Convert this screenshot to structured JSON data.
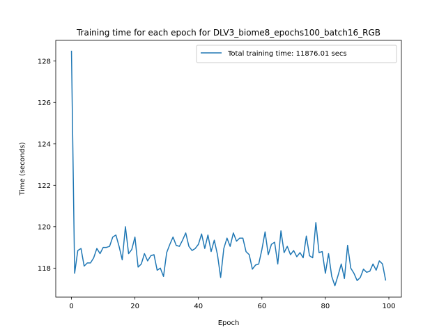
{
  "chart_data": {
    "type": "line",
    "title": "Training time for each epoch for DLV3_biome8_epochs100_batch16_RGB",
    "xlabel": "Epoch",
    "ylabel": "Time (seconds)",
    "xlim": [
      -4.95,
      103.95
    ],
    "ylim": [
      116.6,
      129.0
    ],
    "xticks": [
      0,
      20,
      40,
      60,
      80,
      100
    ],
    "yticks": [
      118,
      120,
      122,
      124,
      126,
      128
    ],
    "grid": false,
    "legend_position": "top-right",
    "series": [
      {
        "name": "Total training time: 11876.01 secs",
        "color": "#1f77b4",
        "x": [
          0,
          1,
          2,
          3,
          4,
          5,
          6,
          7,
          8,
          9,
          10,
          11,
          12,
          13,
          14,
          15,
          16,
          17,
          18,
          19,
          20,
          21,
          22,
          23,
          24,
          25,
          26,
          27,
          28,
          29,
          30,
          31,
          32,
          33,
          34,
          35,
          36,
          37,
          38,
          39,
          40,
          41,
          42,
          43,
          44,
          45,
          46,
          47,
          48,
          49,
          50,
          51,
          52,
          53,
          54,
          55,
          56,
          57,
          58,
          59,
          60,
          61,
          62,
          63,
          64,
          65,
          66,
          67,
          68,
          69,
          70,
          71,
          72,
          73,
          74,
          75,
          76,
          77,
          78,
          79,
          80,
          81,
          82,
          83,
          84,
          85,
          86,
          87,
          88,
          89,
          90,
          91,
          92,
          93,
          94,
          95,
          96,
          97,
          98,
          99
        ],
        "values": [
          128.5,
          117.75,
          118.85,
          118.95,
          118.1,
          118.25,
          118.25,
          118.5,
          118.95,
          118.7,
          119.0,
          119.0,
          119.05,
          119.5,
          119.6,
          119.05,
          118.4,
          120.0,
          118.7,
          118.9,
          119.5,
          118.05,
          118.2,
          118.7,
          118.35,
          118.6,
          118.65,
          117.9,
          118.0,
          117.6,
          118.75,
          119.15,
          119.5,
          119.1,
          119.05,
          119.35,
          119.7,
          119.05,
          118.85,
          118.95,
          119.15,
          119.65,
          118.95,
          119.6,
          118.8,
          119.35,
          118.65,
          117.55,
          118.95,
          119.45,
          119.05,
          119.7,
          119.3,
          119.45,
          119.45,
          118.8,
          118.65,
          117.95,
          118.15,
          118.2,
          118.9,
          119.75,
          118.65,
          119.15,
          119.25,
          118.2,
          119.8,
          118.75,
          119.05,
          118.65,
          118.85,
          118.55,
          118.75,
          118.5,
          119.55,
          118.6,
          118.5,
          120.2,
          118.75,
          118.8,
          117.75,
          118.7,
          117.6,
          117.15,
          117.65,
          118.2,
          117.5,
          119.1,
          118.0,
          117.75,
          117.4,
          117.55,
          117.95,
          117.8,
          117.85,
          118.2,
          117.9,
          118.35,
          118.2,
          117.4
        ]
      }
    ]
  }
}
